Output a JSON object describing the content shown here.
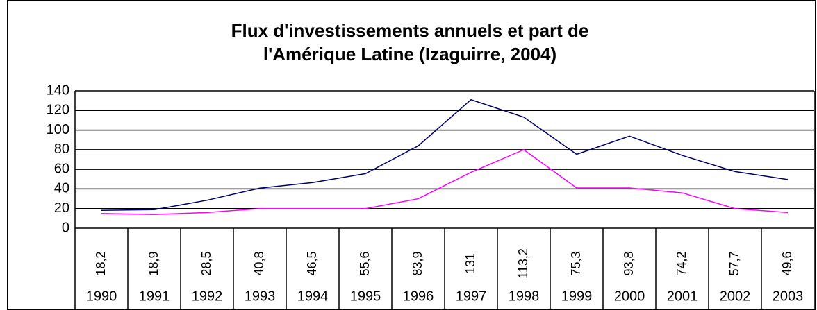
{
  "chart_data": {
    "type": "line",
    "title": [
      "Flux d'investissements annuels et part de",
      "l'Amérique Latine (Izaguirre, 2004)"
    ],
    "categories": [
      "1990",
      "1991",
      "1992",
      "1993",
      "1994",
      "1995",
      "1996",
      "1997",
      "1998",
      "1999",
      "2000",
      "2001",
      "2002",
      "2003"
    ],
    "series": [
      {
        "color": "#000066",
        "values": [
          18.2,
          18.9,
          28.5,
          40.8,
          46.5,
          55.6,
          83.9,
          131,
          113.2,
          75.3,
          93.8,
          74.2,
          57.7,
          49.6
        ],
        "value_labels": [
          "18,2",
          "18,9",
          "28,5",
          "40,8",
          "46,5",
          "55,6",
          "83,9",
          "131",
          "113,2",
          "75,3",
          "93,8",
          "74,2",
          "57,7",
          "49,6"
        ]
      },
      {
        "color": "#ff00ff",
        "values": [
          15,
          14,
          16,
          20,
          20,
          20,
          30,
          57,
          80,
          41,
          41,
          36,
          20,
          16
        ]
      }
    ],
    "ylim": [
      0,
      140
    ],
    "yticks": [
      0,
      20,
      40,
      60,
      80,
      100,
      120,
      140
    ],
    "grid": true
  }
}
